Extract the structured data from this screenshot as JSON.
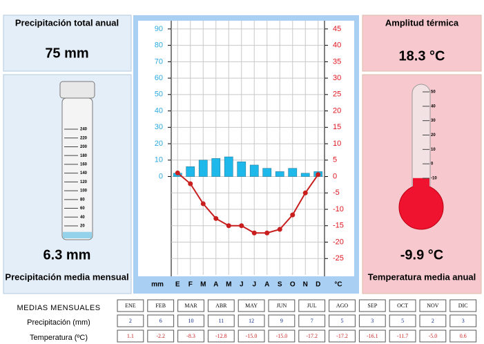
{
  "chart_data": {
    "type": "bar",
    "xlabel": "mm",
    "y2label": "°C",
    "categories": [
      "ENE",
      "FEB",
      "MAR",
      "ABR",
      "MAY",
      "JUN",
      "JUL",
      "AGO",
      "SEP",
      "OCT",
      "NOV",
      "DIC"
    ],
    "month_initials": [
      "E",
      "F",
      "M",
      "A",
      "M",
      "J",
      "J",
      "A",
      "S",
      "O",
      "N",
      "D"
    ],
    "series": [
      {
        "name": "Precipitación (mm)",
        "type": "bar",
        "color": "#1fb8ea",
        "values": [
          2,
          6,
          10,
          11,
          12,
          9,
          7,
          5,
          3,
          5,
          2,
          3
        ]
      },
      {
        "name": "Temperatura (ºC)",
        "type": "line",
        "axis": "y2",
        "color": "#c81e1e",
        "values": [
          1.1,
          -2.2,
          -8.3,
          -12.8,
          -15.0,
          -15.0,
          -17.2,
          -17.2,
          -16.1,
          -11.7,
          -5.0,
          0.6
        ],
        "value_labels": [
          "1.1",
          "-2.2",
          "-8.3",
          "-12.8",
          "-15.0",
          "-15.0",
          "-17.2",
          "-17.2",
          "-16.1",
          "-11.7",
          "-5.0",
          "0.6"
        ]
      }
    ],
    "ylim": [
      -60,
      95
    ],
    "yticks": [
      0,
      10,
      20,
      30,
      40,
      50,
      60,
      70,
      80,
      90
    ],
    "y2lim": [
      -30,
      47.5
    ],
    "y2ticks": [
      -25,
      -20,
      -15,
      -10,
      -5,
      0,
      5,
      10,
      15,
      20,
      25,
      30,
      35,
      40,
      45
    ],
    "grid": true
  },
  "summary": {
    "total_title": "Precipitación total anual",
    "total": "75 mm",
    "mean_precip": {
      "value": 6.3,
      "label": "6.3 mm"
    },
    "mean_precip_title": "Precipitación media mensual",
    "amplitude_title": "Amplitud térmica",
    "amplitude": "18.3 °C",
    "mean_temp": {
      "value": -9.9,
      "label": "-9.9 °C"
    },
    "mean_temp_title": "Temperatura media anual"
  },
  "gauge_ticks": [
    20,
    40,
    60,
    80,
    100,
    120,
    140,
    160,
    180,
    200,
    220,
    240
  ],
  "thermometer_ticks": [
    -10,
    0,
    10,
    20,
    30,
    40,
    50
  ],
  "table": {
    "title": "MEDIAS MENSUALES"
  }
}
